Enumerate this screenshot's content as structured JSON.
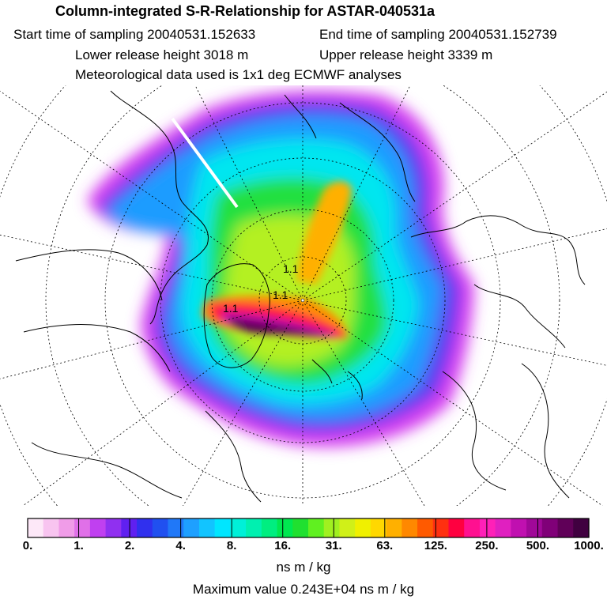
{
  "header": {
    "title": "Column-integrated S-R-Relationship for ASTAR-040531a",
    "start_time": "Start time of sampling 20040531.152633",
    "end_time": "End time of sampling 20040531.152739",
    "lower_height": "Lower release height 3018 m",
    "upper_height": "Upper release height 3339 m",
    "met_data": "Meteorological data used is 1x1 deg ECMWF analyses"
  },
  "colorbar": {
    "labels": [
      "0.",
      "1.",
      "2.",
      "4.",
      "8.",
      "16.",
      "31.",
      "63.",
      "125.",
      "250.",
      "500.",
      "1000."
    ],
    "colors": [
      "#fde8f8",
      "#f8c4f0",
      "#f09ce8",
      "#e070e8",
      "#c040f0",
      "#9030f0",
      "#6020f0",
      "#3030ee",
      "#2050f0",
      "#2078f8",
      "#1ea0ff",
      "#12c4ff",
      "#00e6ff",
      "#00f0d8",
      "#00f0b0",
      "#00ee80",
      "#00e850",
      "#20e030",
      "#60f020",
      "#a0f020",
      "#d0f018",
      "#f0f000",
      "#ffd800",
      "#ffb000",
      "#ff8800",
      "#ff5a00",
      "#ff3010",
      "#ff0040",
      "#ff1090",
      "#ff20b8",
      "#e020c0",
      "#c010b0",
      "#a00898",
      "#800078",
      "#600058",
      "#400040"
    ],
    "units": "ns m / kg",
    "max_value": "Maximum value  0.243E+04 ns m / kg"
  },
  "map": {
    "projection": "polar stereographic, North Pole",
    "graticule": "dotted",
    "annotations": [
      "1.1",
      "1.1",
      "1.1"
    ]
  }
}
